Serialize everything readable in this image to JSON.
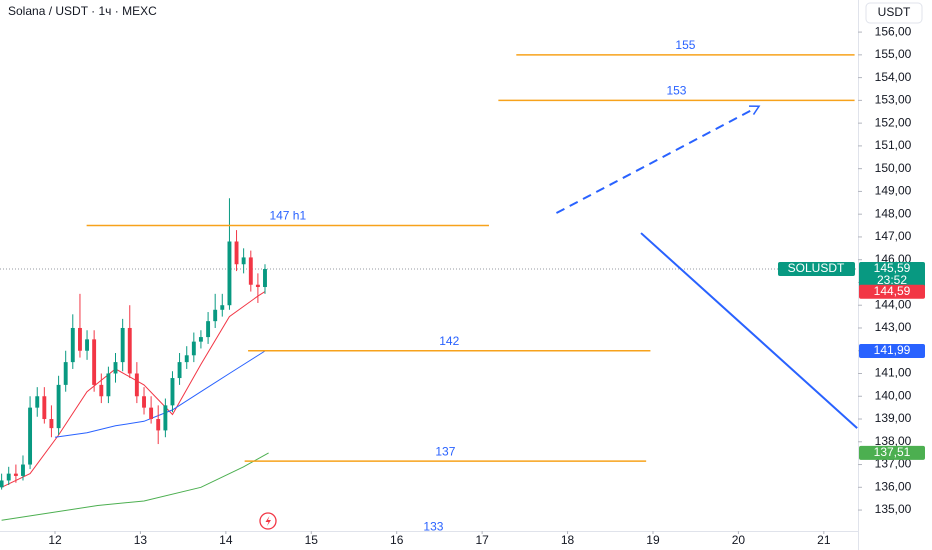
{
  "chart_data": {
    "type": "candlestick",
    "title": "Solana / USDT · 1ч · MEXC",
    "currency": "USDT",
    "up_color": "#089981",
    "down_color": "#f23645",
    "x": [
      11.375,
      11.458,
      11.542,
      11.625,
      11.708,
      11.792,
      11.875,
      11.958,
      12.042,
      12.125,
      12.208,
      12.292,
      12.375,
      12.458,
      12.542,
      12.625,
      12.708,
      12.792,
      12.875,
      12.958,
      13.042,
      13.125,
      13.208,
      13.292,
      13.375,
      13.458,
      13.542,
      13.625,
      13.708,
      13.792,
      13.875,
      13.958,
      14.042,
      14.125,
      14.208,
      14.292,
      14.375,
      14.458
    ],
    "open": [
      136.0,
      136.3,
      136.6,
      136.5,
      137.0,
      139.5,
      140.0,
      139.0,
      138.6,
      140.5,
      141.5,
      143.0,
      142.0,
      142.5,
      140.5,
      140.0,
      141.0,
      141.5,
      143.0,
      141.0,
      140.0,
      139.5,
      139.0,
      138.5,
      139.6,
      140.8,
      141.5,
      141.8,
      142.4,
      142.6,
      143.3,
      143.8,
      144.0,
      146.8,
      145.8,
      146.1,
      144.9,
      144.8
    ],
    "high": [
      136.6,
      136.9,
      137.0,
      137.4,
      140.0,
      140.4,
      140.4,
      139.6,
      140.9,
      142.0,
      143.6,
      144.5,
      142.9,
      142.9,
      141.0,
      141.3,
      141.9,
      143.4,
      144.0,
      141.5,
      140.4,
      140.0,
      139.6,
      139.9,
      141.1,
      141.9,
      142.2,
      142.8,
      142.9,
      143.7,
      144.5,
      144.5,
      148.7,
      147.3,
      146.5,
      146.4,
      145.4,
      145.8
    ],
    "low": [
      135.9,
      136.1,
      136.2,
      136.3,
      136.8,
      139.1,
      138.8,
      138.2,
      138.3,
      140.2,
      141.2,
      141.7,
      141.6,
      140.2,
      139.7,
      139.7,
      140.6,
      141.1,
      140.8,
      139.7,
      139.2,
      138.8,
      137.9,
      138.2,
      139.3,
      140.5,
      141.2,
      141.5,
      142.1,
      142.3,
      143.0,
      143.5,
      143.8,
      145.5,
      145.4,
      144.6,
      144.1,
      144.5
    ],
    "close": [
      136.3,
      136.6,
      136.5,
      137.0,
      139.5,
      140.0,
      139.0,
      138.6,
      140.5,
      141.5,
      143.0,
      142.0,
      142.5,
      140.5,
      140.0,
      141.0,
      141.5,
      143.0,
      141.0,
      140.0,
      139.5,
      139.0,
      138.5,
      139.6,
      140.8,
      141.5,
      141.8,
      142.4,
      142.6,
      143.3,
      143.8,
      144.0,
      146.8,
      145.8,
      146.1,
      144.9,
      144.8,
      145.59
    ],
    "xlim": [
      11.356,
      21.4
    ],
    "xticks": [
      12,
      13,
      14,
      15,
      16,
      17,
      18,
      19,
      20,
      21
    ],
    "ylim": [
      134.08,
      157.41
    ],
    "yticks": [
      {
        "value": 135,
        "label": "135,00"
      },
      {
        "value": 136,
        "label": "136,00"
      },
      {
        "value": 137,
        "label": "137,00"
      },
      {
        "value": 138,
        "label": "138,00"
      },
      {
        "value": 139,
        "label": "139,00"
      },
      {
        "value": 140,
        "label": "140,00"
      },
      {
        "value": 141,
        "label": "141,00"
      },
      {
        "value": 142,
        "label": "142,00"
      },
      {
        "value": 143,
        "label": "143,00"
      },
      {
        "value": 144,
        "label": "144,00"
      },
      {
        "value": 145,
        "label": "145,00"
      },
      {
        "value": 146,
        "label": "146,00"
      },
      {
        "value": 147,
        "label": "147,00"
      },
      {
        "value": 148,
        "label": "148,00"
      },
      {
        "value": 149,
        "label": "149,00"
      },
      {
        "value": 150,
        "label": "150,00"
      },
      {
        "value": 151,
        "label": "151,00"
      },
      {
        "value": 152,
        "label": "152,00"
      },
      {
        "value": 153,
        "label": "153,00"
      },
      {
        "value": 154,
        "label": "154,00"
      },
      {
        "value": 155,
        "label": "155,00"
      },
      {
        "value": 156,
        "label": "156,00"
      }
    ],
    "moving_averages": [
      {
        "color": "#f23645",
        "x": [
          11.375,
          11.708,
          12.042,
          12.375,
          12.708,
          13.042,
          13.375,
          13.708,
          14.042,
          14.375,
          14.458
        ],
        "values": [
          136.0,
          136.6,
          138.3,
          140.2,
          141.2,
          140.5,
          139.2,
          141.4,
          143.5,
          144.4,
          144.6
        ]
      },
      {
        "color": "#2962ff",
        "x": [
          12.0,
          12.375,
          12.708,
          13.042,
          13.375,
          13.708,
          14.042,
          14.458
        ],
        "values": [
          138.2,
          138.4,
          138.7,
          138.9,
          139.4,
          140.2,
          141.0,
          141.99
        ]
      },
      {
        "color": "#4caf50",
        "x": [
          11.375,
          12.5,
          13.042,
          13.708,
          14.208,
          14.5
        ],
        "values": [
          134.55,
          135.2,
          135.4,
          136.0,
          136.9,
          137.51
        ]
      }
    ],
    "levels": [
      {
        "value": 155,
        "label": "155",
        "x": [
          17.4,
          21.36
        ],
        "color": "#f7a21b"
      },
      {
        "value": 153,
        "label": "153",
        "x": [
          17.19,
          21.36
        ],
        "color": "#f7a21b"
      },
      {
        "value": 147.5,
        "label": "147 h1",
        "x": [
          12.37,
          17.08
        ],
        "color": "#f7a21b"
      },
      {
        "value": 142,
        "label": "142",
        "x": [
          14.26,
          18.97
        ],
        "color": "#f7a21b"
      },
      {
        "value": 137.15,
        "label": "137",
        "x": [
          14.22,
          18.92
        ],
        "color": "#f7a21b"
      }
    ],
    "trend_lines": [
      {
        "x": [
          17.87,
          20.2
        ],
        "values": [
          148.05,
          152.66
        ],
        "dashed": true,
        "color": "#2962ff"
      },
      {
        "x": [
          18.86,
          21.39
        ],
        "values": [
          147.17,
          138.6
        ],
        "dashed": false,
        "color": "#2962ff"
      }
    ],
    "annotations": [
      {
        "text": "133",
        "x": 16.43,
        "y": 134.25
      }
    ],
    "price_badges": [
      {
        "value": 145.59,
        "label": "145,59",
        "symbol": "SOLUSDT",
        "countdown": "23:52",
        "color": "#089981"
      },
      {
        "value": 144.59,
        "label": "144,59",
        "color": "#f23645"
      },
      {
        "value": 141.99,
        "label": "141,99",
        "color": "#2962ff"
      },
      {
        "value": 137.51,
        "label": "137,51",
        "color": "#4caf50"
      }
    ]
  }
}
